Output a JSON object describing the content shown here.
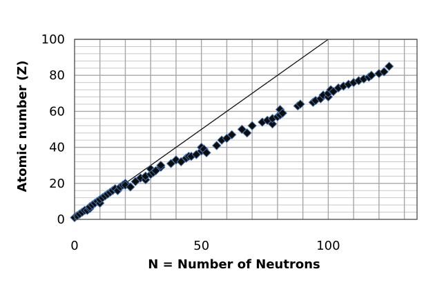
{
  "chart_data": {
    "type": "scatter",
    "title": "",
    "xlabel": "N = Number of Neutrons",
    "ylabel": "Atomic number (Z)",
    "xlim": [
      0,
      135
    ],
    "ylim": [
      0,
      100
    ],
    "x_ticks": [
      0,
      50,
      100
    ],
    "y_ticks": [
      0,
      20,
      40,
      60,
      80,
      100
    ],
    "x_major_gridlines": [
      0,
      10,
      20,
      30,
      40,
      50,
      60,
      70,
      80,
      90,
      100,
      110,
      120,
      130
    ],
    "y_major_gridlines": [
      20,
      40,
      60,
      80,
      100
    ],
    "y_minor_step": 4,
    "grid": true,
    "legend": "none",
    "marker": "diamond",
    "marker_color": "#0d0d0d",
    "marker_edge_color": "#3e6fae",
    "grid_color": "#a6a6a6",
    "reference_line": {
      "label": "",
      "x": [
        0,
        100
      ],
      "y": [
        0,
        100
      ]
    },
    "series": [
      {
        "x": [
          0,
          1,
          2,
          3,
          4,
          5,
          6,
          6,
          7,
          8,
          9,
          10,
          10,
          11,
          12,
          13,
          14,
          15,
          16,
          17,
          18,
          19,
          20,
          20,
          22,
          24,
          26,
          28,
          28,
          30,
          30,
          31,
          32,
          34,
          34,
          38,
          40,
          42,
          44,
          45,
          46,
          48,
          50,
          50,
          51,
          52,
          56,
          58,
          60,
          62,
          66,
          68,
          70,
          74,
          76,
          78,
          78,
          80,
          81,
          81,
          82,
          88,
          89,
          94,
          95,
          97,
          98,
          100,
          100,
          101,
          102,
          104,
          106,
          108,
          110,
          112,
          114,
          116,
          117,
          120,
          122,
          124
        ],
        "y": [
          1,
          2,
          3,
          4,
          5,
          5,
          6,
          7,
          8,
          9,
          10,
          9,
          11,
          12,
          13,
          14,
          15,
          16,
          17,
          16,
          18,
          19,
          20,
          19,
          18,
          21,
          23,
          22,
          24,
          25,
          28,
          26,
          27,
          29,
          30,
          31,
          33,
          32,
          34,
          35,
          35,
          36,
          38,
          40,
          39,
          37,
          41,
          44,
          45,
          47,
          50,
          48,
          52,
          54,
          55,
          53,
          56,
          57,
          58,
          61,
          59,
          63,
          64,
          65,
          66,
          67,
          69,
          68,
          70,
          72,
          71,
          73,
          74,
          75,
          76,
          77,
          78,
          79,
          80,
          81,
          82,
          85
        ]
      }
    ]
  }
}
